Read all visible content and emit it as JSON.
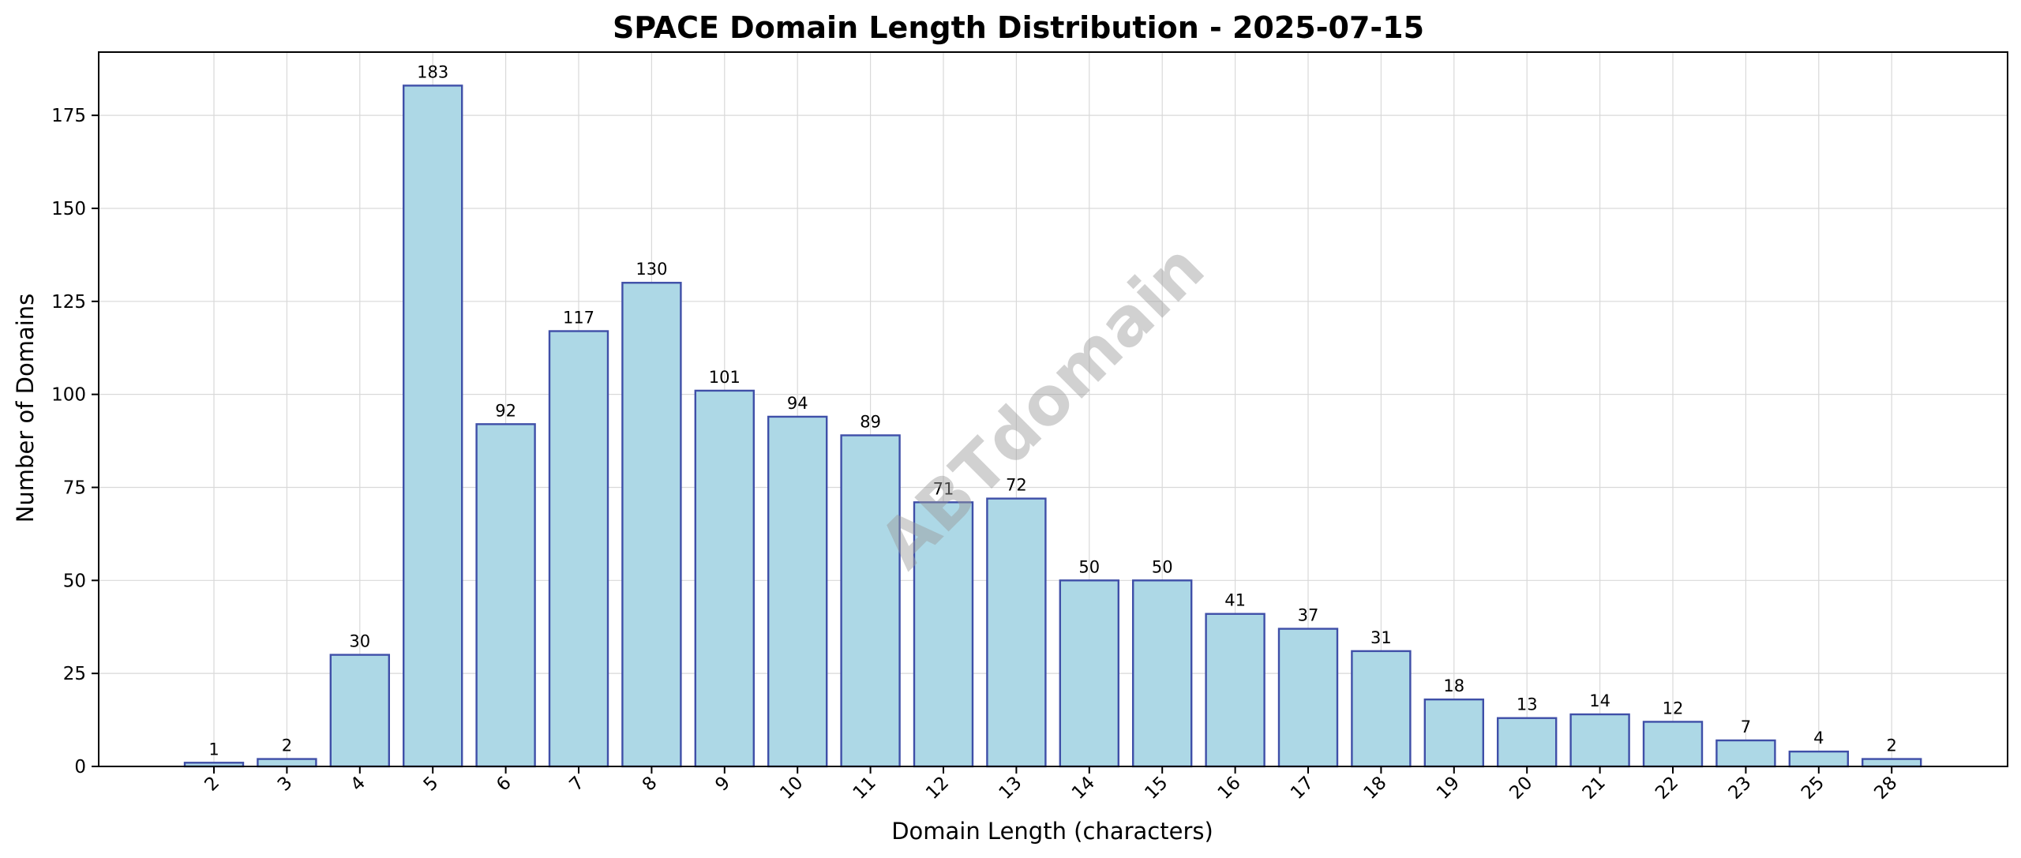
{
  "chart_data": {
    "type": "bar",
    "title": "SPACE Domain Length Distribution - 2025-07-15",
    "xlabel": "Domain Length (characters)",
    "ylabel": "Number of Domains",
    "categories": [
      "2",
      "3",
      "4",
      "5",
      "6",
      "7",
      "8",
      "9",
      "10",
      "11",
      "12",
      "13",
      "14",
      "15",
      "16",
      "17",
      "18",
      "19",
      "20",
      "21",
      "22",
      "23",
      "25",
      "28"
    ],
    "values": [
      1,
      2,
      30,
      183,
      92,
      117,
      130,
      101,
      94,
      89,
      71,
      72,
      50,
      50,
      41,
      37,
      31,
      18,
      13,
      14,
      12,
      7,
      4,
      2
    ],
    "ylim": [
      0,
      192
    ],
    "yticks": [
      0,
      25,
      50,
      75,
      100,
      125,
      150,
      175
    ],
    "grid": true,
    "xtick_rotation": 45,
    "bar_color": "#add8e6",
    "bar_edge_color": "#3f4fa8",
    "watermark": "ABTdomain"
  }
}
